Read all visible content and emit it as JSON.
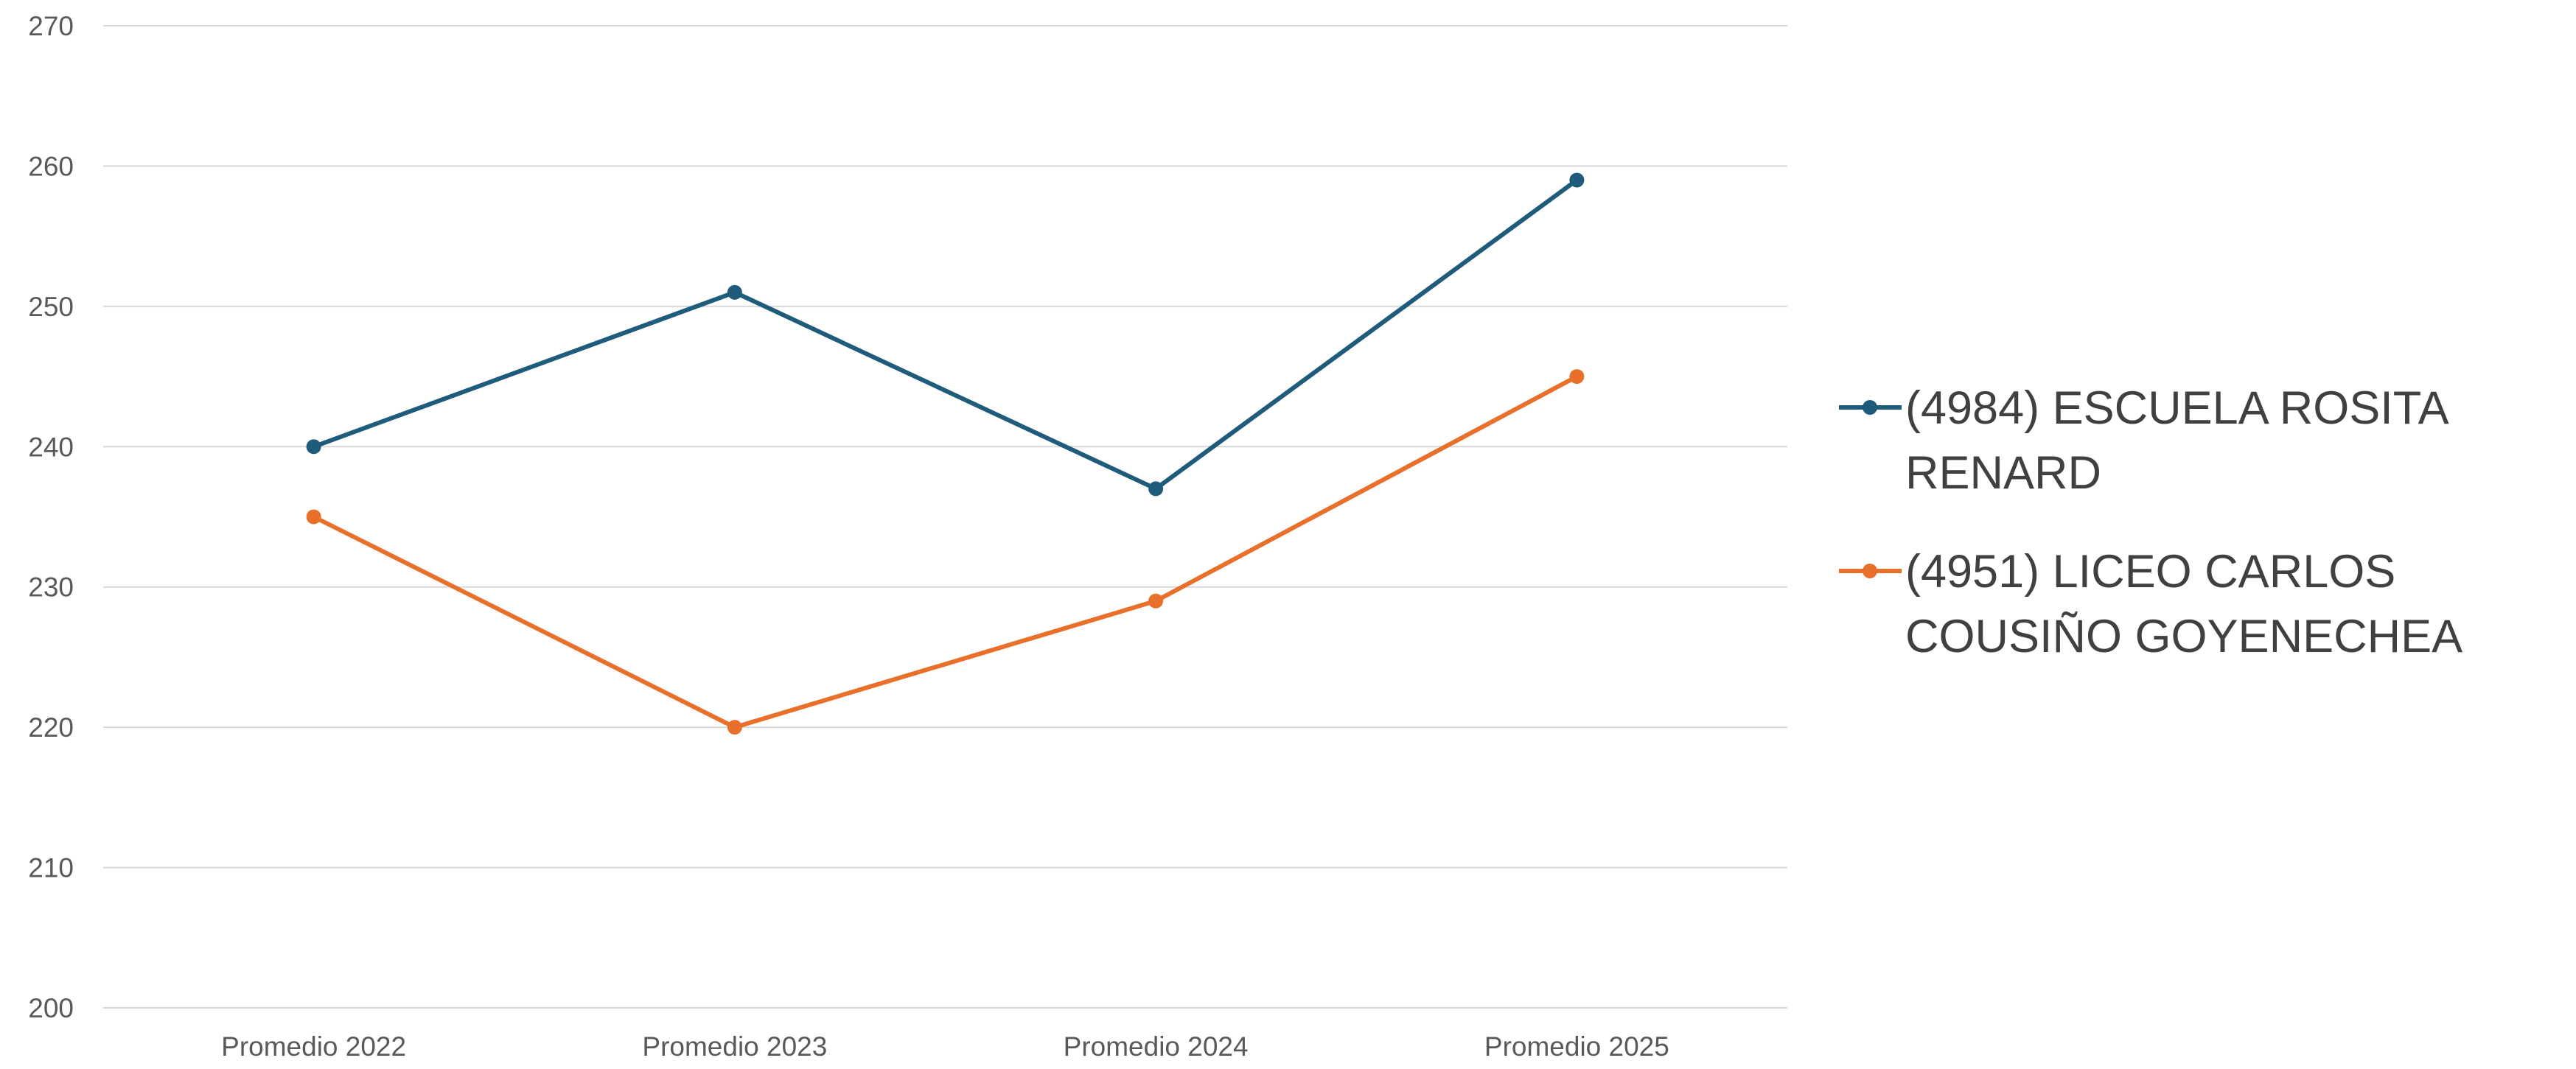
{
  "chart_data": {
    "type": "line",
    "title": "",
    "xlabel": "",
    "ylabel": "",
    "categories": [
      "Promedio 2022",
      "Promedio 2023",
      "Promedio 2024",
      "Promedio 2025"
    ],
    "ylim": [
      200,
      270
    ],
    "yticks": [
      200,
      210,
      220,
      230,
      240,
      250,
      260,
      270
    ],
    "grid": true,
    "legend_position": "right",
    "series": [
      {
        "name_lines": [
          "(4984) ESCUELA ROSITA",
          "RENARD"
        ],
        "color": "#1f5b7a",
        "values": [
          240,
          251,
          237,
          259
        ]
      },
      {
        "name_lines": [
          "(4951) LICEO CARLOS",
          "COUSIÑO GOYENECHEA"
        ],
        "color": "#e8702a",
        "values": [
          235,
          220,
          229,
          245
        ]
      }
    ]
  }
}
